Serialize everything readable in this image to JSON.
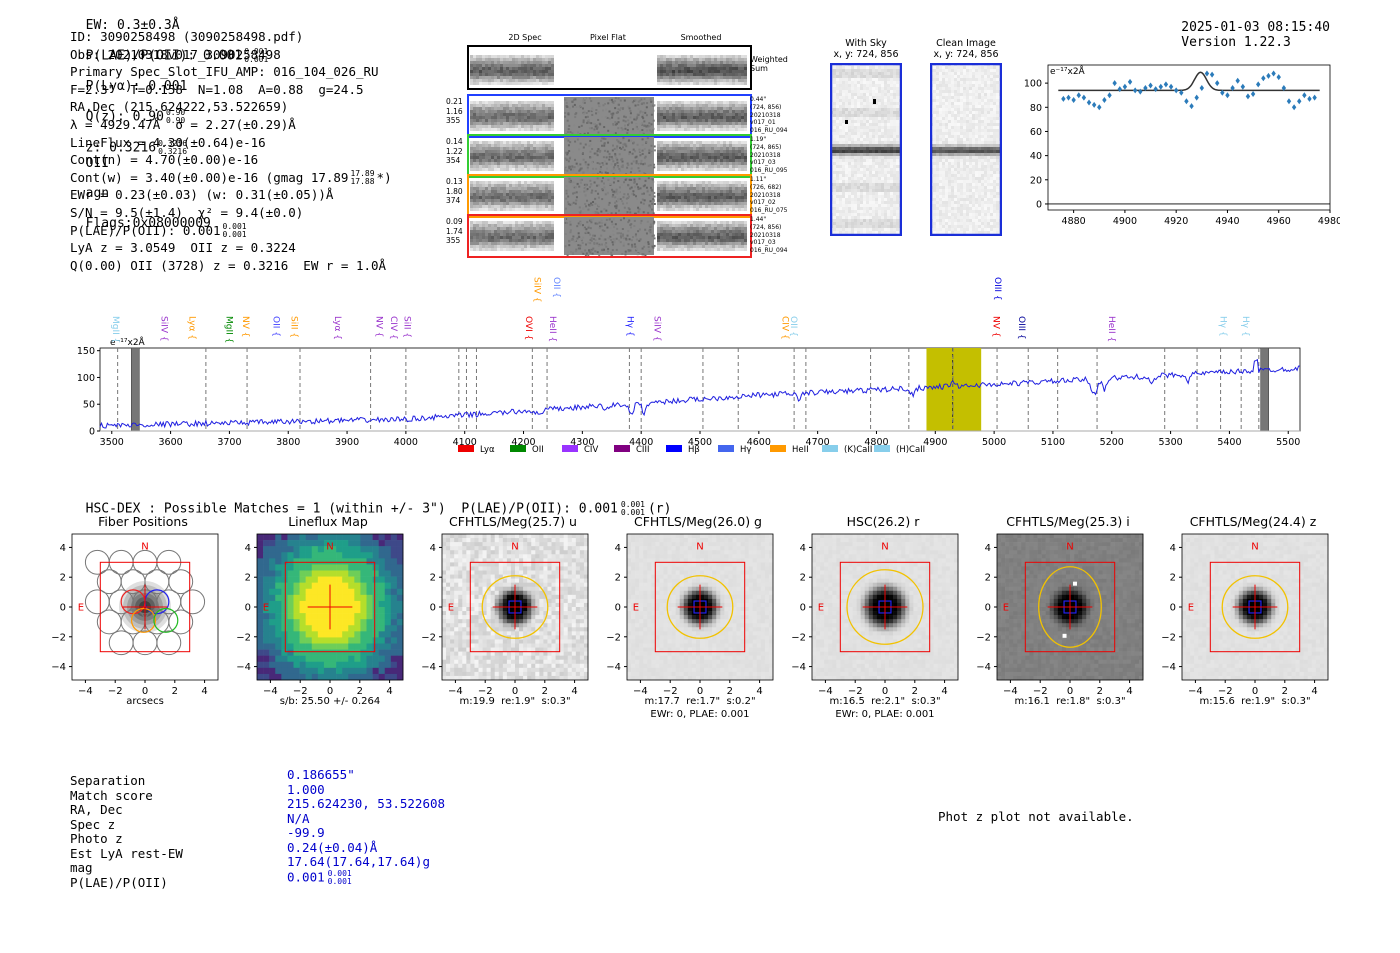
{
  "header": {
    "ew": "EW: 0.3±0.3Å",
    "plae": "P(LAE)/P(OII): 0.001",
    "plae_hi": "0.001",
    "plae_lo": "0.001",
    "plya": "P(Lyα): 0.001",
    "qz": "Q(z): 0.90",
    "qz_hi": "0.90",
    "qz_lo": "0.90",
    "z": "z: 0.3216",
    "z_hi": "0.3216",
    "z_lo": "0.3216",
    "z_line": "OII",
    "agn": "agn",
    "flags": "Flags:0x08000009",
    "datetime": "2025-01-03 08:15:40",
    "version": "Version 1.22.3"
  },
  "info": {
    "lines": [
      "ID: 3090258498 (3090258498.pdf)",
      "Obs: 20210318v017_3090258498",
      "Primary Spec_Slot_IFU_AMP: 016_104_026_RU",
      "F=2.3\"  T=0.158  N=1.08  A=0.88  g=24.5",
      "RA,Dec (215.624222,53.522659)",
      "λ = 4929.47Å  σ = 2.27(±0.29)Å",
      "LineFlux = 4.30(±0.64)e-16",
      "Cont(n) = 4.70(±0.00)e-16",
      "Cont(w) = 3.40(±0.00)e-16 (gmag 17.89",
      "EWr = 0.23(±0.03) (w: 0.31(±0.05))Å",
      "S/N = 9.5(±1.4)  χ² = 9.4(±0.0)",
      "P(LAE)/P(OII): 0.001",
      "LyA z = 3.0549  OII z = 0.3224",
      "Q(0.00) OII (3728) z = 0.3216  EW r = 1.0Å"
    ],
    "gmag_hi": "17.89",
    "gmag_lo": "17.88",
    "gmag_tail": "*)",
    "plae_hi": "0.001",
    "plae_lo": "0.001"
  },
  "spec2d": {
    "col_titles": [
      "2D Spec",
      "Pixel Flat",
      "Smoothed"
    ],
    "weighted_sum": "Weighted\nSum",
    "rows": [
      {
        "left": [
          "0.21",
          "1.16",
          "355"
        ],
        "right": [
          "0.44\"",
          "(724, 856)",
          "20210318",
          "v017_01",
          "016_RU_094"
        ],
        "color": "#2040ff"
      },
      {
        "left": [
          "0.14",
          "1.22",
          "354"
        ],
        "right": [
          "1.19\"",
          "(724, 865)",
          "20210318",
          "v017_03",
          "016_RU_095"
        ],
        "color": "#33cc33"
      },
      {
        "left": [
          "0.13",
          "1.80",
          "374"
        ],
        "right": [
          "1.11\"",
          "(726, 682)",
          "20210318",
          "v017_02",
          "016_RU_075"
        ],
        "color": "#ff9900"
      },
      {
        "left": [
          "0.09",
          "1.74",
          "355"
        ],
        "right": [
          "1.44\"",
          "(724, 856)",
          "20210318",
          "v017_03",
          "016_RU_094"
        ],
        "color": "#ee2222"
      }
    ]
  },
  "sky": {
    "with_sky_title": "With Sky",
    "with_sky_sub": "x, y: 724, 856",
    "clean_title": "Clean Image",
    "clean_sub": "x, y: 724, 856"
  },
  "zoom_chart": {
    "type": "scatter",
    "unit_label": "e⁻¹⁷x2Å",
    "x": [
      4876,
      4878,
      4880,
      4882,
      4884,
      4886,
      4888,
      4890,
      4892,
      4894,
      4896,
      4898,
      4900,
      4902,
      4904,
      4906,
      4908,
      4910,
      4912,
      4914,
      4916,
      4918,
      4920,
      4922,
      4924,
      4926,
      4928,
      4930,
      4932,
      4934,
      4936,
      4938,
      4940,
      4942,
      4944,
      4946,
      4948,
      4950,
      4952,
      4954,
      4956,
      4958,
      4960,
      4962,
      4964,
      4966,
      4968,
      4970,
      4972,
      4974
    ],
    "values": [
      87,
      88,
      86,
      90,
      88,
      84,
      82,
      80,
      86,
      90,
      100,
      95,
      97,
      101,
      94,
      93,
      96,
      98,
      95,
      97,
      99,
      97,
      94,
      92,
      85,
      81,
      88,
      96,
      108,
      107,
      100,
      92,
      90,
      96,
      102,
      97,
      89,
      91,
      99,
      104,
      106,
      108,
      105,
      96,
      85,
      80,
      85,
      90,
      87,
      88
    ],
    "fit_curve": "gaussian",
    "xticks": [
      "4880",
      "4900",
      "4920",
      "4940",
      "4960",
      "4980"
    ],
    "yticks": [
      "0",
      "20",
      "40",
      "60",
      "80",
      "100"
    ],
    "xlim": [
      4870,
      4980
    ],
    "ylim": [
      -5,
      115
    ],
    "baseline": 94,
    "peak": 109,
    "peak_center": 4929.5,
    "peak_sigma": 2.3
  },
  "full_spectrum": {
    "type": "line",
    "unit_label": "e⁻¹⁷x2Å",
    "xlim": [
      3480,
      5520
    ],
    "ylim": [
      0,
      155
    ],
    "xticks": [
      "3500",
      "3600",
      "3700",
      "3800",
      "3900",
      "4000",
      "4100",
      "4200",
      "4300",
      "4400",
      "4500",
      "4600",
      "4700",
      "4800",
      "4900",
      "5000",
      "5100",
      "5200",
      "5300",
      "5400",
      "5500"
    ],
    "yticks": [
      "0",
      "50",
      "100",
      "150"
    ],
    "highlight_range": [
      4885,
      4978
    ],
    "line_center": 4929.47,
    "line_labels_top": [
      {
        "text": "SiIV",
        "wave": 4224,
        "color": "#ff9900"
      },
      {
        "text": "OII",
        "wave": 4257,
        "color": "#6688ff"
      },
      {
        "text": "OIII",
        "wave": 5007,
        "color": "#0000dd"
      }
    ],
    "line_labels": [
      {
        "text": "MgII",
        "wave": 3507,
        "color": "#87ceeb"
      },
      {
        "text": "SiIV",
        "wave": 3590,
        "color": "#9933cc"
      },
      {
        "text": "Lyα",
        "wave": 3637,
        "color": "#ff9900"
      },
      {
        "text": "MgII",
        "wave": 3700,
        "color": "#008800"
      },
      {
        "text": "NV",
        "wave": 3728,
        "color": "#ff9900"
      },
      {
        "text": "OII",
        "wave": 3780,
        "color": "#4444ff"
      },
      {
        "text": "SiII",
        "wave": 3811,
        "color": "#ff9900"
      },
      {
        "text": "Lyα",
        "wave": 3885,
        "color": "#9933cc"
      },
      {
        "text": "NV",
        "wave": 3955,
        "color": "#9933cc"
      },
      {
        "text": "CIV",
        "wave": 3980,
        "color": "#9933cc"
      },
      {
        "text": "SiII",
        "wave": 4003,
        "color": "#9933cc"
      },
      {
        "text": "OVI",
        "wave": 4209,
        "color": "#ee0000"
      },
      {
        "text": "HeII",
        "wave": 4250,
        "color": "#9933cc"
      },
      {
        "text": "Hγ",
        "wave": 4382,
        "color": "#2222ff"
      },
      {
        "text": "SiIV",
        "wave": 4428,
        "color": "#9933cc"
      },
      {
        "text": "OII",
        "wave": 4660,
        "color": "#87ceeb"
      },
      {
        "text": "CIV",
        "wave": 4645,
        "color": "#ff9900"
      },
      {
        "text": "NV",
        "wave": 5004,
        "color": "#ee0000"
      },
      {
        "text": "OIII",
        "wave": 5047,
        "color": "#000099"
      },
      {
        "text": "HeII",
        "wave": 5200,
        "color": "#9933cc"
      },
      {
        "text": "Hγ",
        "wave": 5390,
        "color": "#87ceeb"
      },
      {
        "text": "Hγ",
        "wave": 5428,
        "color": "#87ceeb"
      }
    ],
    "dashed_lines": [
      3510,
      3660,
      3730,
      3820,
      3940,
      4000,
      4090,
      4103,
      4120,
      4215,
      4240,
      4380,
      4400,
      4505,
      4565,
      4660,
      4680,
      4790,
      4855,
      4930,
      5005,
      5058,
      5108,
      5175,
      5290,
      5345,
      5385,
      5420,
      5450
    ],
    "legend": [
      {
        "label": "Lyα",
        "color": "#ee0000"
      },
      {
        "label": "OII",
        "color": "#008800"
      },
      {
        "label": "CIV",
        "color": "#9933ff"
      },
      {
        "label": "CIII",
        "color": "#800080"
      },
      {
        "label": "Hβ",
        "color": "#0000ff"
      },
      {
        "label": "Hγ",
        "color": "#4466ee"
      },
      {
        "label": "HeII",
        "color": "#ff9900"
      },
      {
        "label": "(K)CaII",
        "color": "#87ceeb"
      },
      {
        "label": "(H)CaII",
        "color": "#87ceeb"
      }
    ]
  },
  "hsc": {
    "title_text": "HSC-DEX : Possible Matches = 1 (within +/- 3\")  P(LAE)/P(OII): 0.001",
    "plae_hi": "0.001",
    "plae_lo": "0.001",
    "band": "(r)"
  },
  "cutouts": [
    {
      "title": "Fiber Positions",
      "caption": "arcsecs",
      "caption2": "",
      "type": "fibers"
    },
    {
      "title": "Lineflux Map",
      "caption": "s/b: 25.50 +/- 0.264",
      "caption2": "",
      "type": "lineflux"
    },
    {
      "title": "CFHTLS/Meg(25.7) u",
      "caption": "m:19.9  re:1.9\"  s:0.3\"",
      "caption2": "",
      "type": "noisy"
    },
    {
      "title": "CFHTLS/Meg(26.0) g",
      "caption": "m:17.7  re:1.7\"  s:0.2\"",
      "caption2": "EWr: 0, PLAE: 0.001",
      "type": "clean"
    },
    {
      "title": "HSC(26.2) r",
      "caption": "m:16.5  re:2.1\"  s:0.3\"",
      "caption2": "EWr: 0, PLAE: 0.001",
      "type": "clean-big"
    },
    {
      "title": "CFHTLS/Meg(25.3) i",
      "caption": "m:16.1  re:1.8\"  s:0.3\"",
      "caption2": "",
      "type": "grey"
    },
    {
      "title": "CFHTLS/Meg(24.4) z",
      "caption": "m:15.6  re:1.9\"  s:0.3\"",
      "caption2": "",
      "type": "clean"
    }
  ],
  "cutout_axes": {
    "xticks": [
      "−4",
      "−2",
      "0",
      "2",
      "4"
    ],
    "yticks": [
      "4",
      "2",
      "0",
      "−2",
      "−4"
    ],
    "north": "N",
    "east": "E"
  },
  "match": {
    "keys": [
      "Separation",
      "Match score",
      "RA, Dec",
      "Spec z",
      "Photo z",
      "Est LyA rest-EW",
      "mag",
      "P(LAE)/P(OII)"
    ],
    "values": [
      "0.186655\"",
      "1.000",
      "215.624230, 53.522608",
      "N/A",
      "-99.9",
      "0.24(±0.04)Å",
      "17.64(17.64,17.64)g",
      "0.001"
    ],
    "plae_hi": "0.001",
    "plae_lo": "0.001"
  },
  "photz": {
    "message": "Phot z plot not available."
  }
}
